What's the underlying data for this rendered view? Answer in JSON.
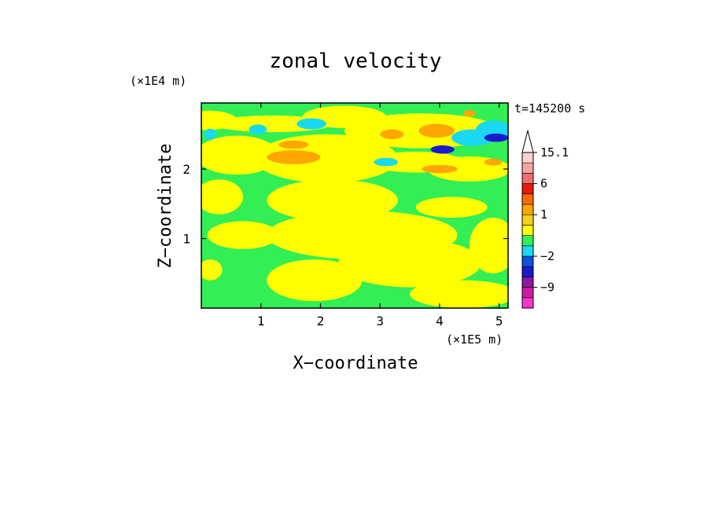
{
  "chart_data": {
    "type": "heatmap",
    "title": "zonal velocity",
    "xlabel": "X−coordinate",
    "ylabel": "Z−coordinate",
    "x_multiplier": "(×1E5 m)",
    "y_multiplier": "(×1E4 m)",
    "time_label": "t=145200 s",
    "xlim": [
      0,
      5.15
    ],
    "ylim": [
      0,
      2.95
    ],
    "x_ticks": [
      1,
      2,
      3,
      4,
      5
    ],
    "y_ticks": [
      1,
      2
    ],
    "grid": false,
    "colorbar": {
      "position": "right",
      "levels": [
        {
          "value": -12,
          "color": "#ff33cc"
        },
        {
          "value": -9,
          "color": "#cc1aa6"
        },
        {
          "value": -6,
          "color": "#8a1a99"
        },
        {
          "value": -4,
          "color": "#1a1acc"
        },
        {
          "value": -2,
          "color": "#0a55d6"
        },
        {
          "value": -1,
          "color": "#19d9f2"
        },
        {
          "value": 0,
          "color": "#33ee55"
        },
        {
          "value": 0.5,
          "color": "#ffff00"
        },
        {
          "value": 1,
          "color": "#f2d21a"
        },
        {
          "value": 2,
          "color": "#ffa600"
        },
        {
          "value": 4,
          "color": "#ff6a00"
        },
        {
          "value": 6,
          "color": "#e61a0d"
        },
        {
          "value": 9,
          "color": "#f26e6e"
        },
        {
          "value": 12,
          "color": "#f7a3a3"
        },
        {
          "value": 15.1,
          "color": "#fbd0d0"
        }
      ],
      "tick_labels": [
        "15.1",
        "6",
        "1",
        "−2",
        "−9"
      ]
    },
    "field": {
      "background_color": "#33ee55",
      "features": [
        {
          "kind": "yellow",
          "x": 0.1,
          "z": 2.7,
          "rx": 0.5,
          "rz": 0.14
        },
        {
          "kind": "yellow",
          "x": 1.2,
          "z": 2.65,
          "rx": 1.0,
          "rz": 0.12
        },
        {
          "kind": "yellow",
          "x": 2.4,
          "z": 2.75,
          "rx": 0.7,
          "rz": 0.16
        },
        {
          "kind": "yellow",
          "x": 3.7,
          "z": 2.55,
          "rx": 1.3,
          "rz": 0.25
        },
        {
          "kind": "yellow",
          "x": 0.6,
          "z": 2.2,
          "rx": 0.7,
          "rz": 0.28
        },
        {
          "kind": "yellow",
          "x": 2.1,
          "z": 2.15,
          "rx": 1.2,
          "rz": 0.35
        },
        {
          "kind": "yellow",
          "x": 3.6,
          "z": 2.1,
          "rx": 0.8,
          "rz": 0.15
        },
        {
          "kind": "yellow",
          "x": 4.5,
          "z": 2.0,
          "rx": 0.7,
          "rz": 0.18
        },
        {
          "kind": "yellow",
          "x": 0.3,
          "z": 1.6,
          "rx": 0.4,
          "rz": 0.25
        },
        {
          "kind": "yellow",
          "x": 2.2,
          "z": 1.55,
          "rx": 1.1,
          "rz": 0.3
        },
        {
          "kind": "yellow",
          "x": 4.2,
          "z": 1.45,
          "rx": 0.6,
          "rz": 0.15
        },
        {
          "kind": "yellow",
          "x": 2.7,
          "z": 1.05,
          "rx": 1.6,
          "rz": 0.35
        },
        {
          "kind": "yellow",
          "x": 0.7,
          "z": 1.05,
          "rx": 0.6,
          "rz": 0.2
        },
        {
          "kind": "yellow",
          "x": 3.5,
          "z": 0.65,
          "rx": 1.2,
          "rz": 0.35
        },
        {
          "kind": "yellow",
          "x": 1.9,
          "z": 0.4,
          "rx": 0.8,
          "rz": 0.3
        },
        {
          "kind": "yellow",
          "x": 4.4,
          "z": 0.2,
          "rx": 0.9,
          "rz": 0.2
        },
        {
          "kind": "yellow",
          "x": 4.9,
          "z": 0.9,
          "rx": 0.4,
          "rz": 0.4
        },
        {
          "kind": "yellow",
          "x": 0.15,
          "z": 0.55,
          "rx": 0.2,
          "rz": 0.15
        },
        {
          "kind": "orange",
          "x": 1.55,
          "z": 2.17,
          "rx": 0.45,
          "rz": 0.1
        },
        {
          "kind": "orange",
          "x": 1.55,
          "z": 2.35,
          "rx": 0.25,
          "rz": 0.06
        },
        {
          "kind": "orange",
          "x": 3.2,
          "z": 2.5,
          "rx": 0.2,
          "rz": 0.07
        },
        {
          "kind": "orange",
          "x": 3.95,
          "z": 2.55,
          "rx": 0.3,
          "rz": 0.1
        },
        {
          "kind": "orange",
          "x": 4.0,
          "z": 2.0,
          "rx": 0.3,
          "rz": 0.06
        },
        {
          "kind": "orange",
          "x": 4.9,
          "z": 2.1,
          "rx": 0.15,
          "rz": 0.05
        },
        {
          "kind": "orange",
          "x": 4.5,
          "z": 2.8,
          "rx": 0.1,
          "rz": 0.05
        },
        {
          "kind": "cyan",
          "x": 0.15,
          "z": 2.5,
          "rx": 0.1,
          "rz": 0.08
        },
        {
          "kind": "cyan",
          "x": 0.95,
          "z": 2.57,
          "rx": 0.15,
          "rz": 0.07
        },
        {
          "kind": "cyan",
          "x": 1.85,
          "z": 2.65,
          "rx": 0.25,
          "rz": 0.08
        },
        {
          "kind": "cyan",
          "x": 3.1,
          "z": 2.1,
          "rx": 0.2,
          "rz": 0.06
        },
        {
          "kind": "cyan",
          "x": 4.55,
          "z": 2.45,
          "rx": 0.35,
          "rz": 0.12
        },
        {
          "kind": "cyan",
          "x": 4.9,
          "z": 2.55,
          "rx": 0.3,
          "rz": 0.15
        },
        {
          "kind": "blue",
          "x": 4.05,
          "z": 2.28,
          "rx": 0.2,
          "rz": 0.06
        },
        {
          "kind": "blue",
          "x": 4.95,
          "z": 2.45,
          "rx": 0.2,
          "rz": 0.06
        }
      ]
    }
  }
}
